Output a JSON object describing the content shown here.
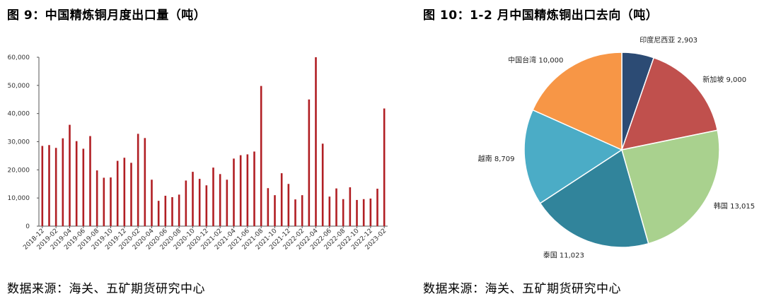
{
  "left": {
    "title": "图 9：中国精炼铜月度出口量（吨）",
    "source": "数据来源：海关、五矿期货研究中心"
  },
  "right": {
    "title": "图 10：1-2 月中国精炼铜出口去向（吨）",
    "source": "数据来源：海关、五矿期货研究中心"
  },
  "chart_data": [
    {
      "type": "bar",
      "title": "图 9：中国精炼铜月度出口量（吨）",
      "color": "#b11f24",
      "ylim": [
        0,
        60000
      ],
      "yticks": [
        0,
        10000,
        20000,
        30000,
        40000,
        50000,
        60000
      ],
      "ytick_labels": [
        "0",
        "10,000",
        "20,000",
        "30,000",
        "40,000",
        "50,000",
        "60,000"
      ],
      "xtick_labels": [
        "2018-12",
        "2019-02",
        "2019-04",
        "2019-06",
        "2019-08",
        "2019-10",
        "2019-12",
        "2020-02",
        "2020-04",
        "2020-06",
        "2020-08",
        "2020-10",
        "2020-12",
        "2021-02",
        "2021-04",
        "2021-06",
        "2021-08",
        "2021-10",
        "2021-12",
        "2022-02",
        "2022-04",
        "2022-06",
        "2022-08",
        "2022-10",
        "2022-12",
        "2023-02"
      ],
      "values": [
        28500,
        28800,
        27800,
        31200,
        36000,
        30200,
        27500,
        32000,
        19800,
        17200,
        17300,
        23200,
        24300,
        22500,
        32800,
        31300,
        16500,
        9000,
        10800,
        10300,
        11200,
        16200,
        19300,
        16800,
        14500,
        20800,
        18500,
        16500,
        24000,
        25200,
        25500,
        26500,
        49800,
        13500,
        11000,
        18800,
        15000,
        9500,
        11000,
        45000,
        60000,
        29300,
        10500,
        13400,
        9600,
        13800,
        9300,
        9600,
        9800,
        13300,
        41800
      ],
      "grid": false,
      "legend": "none"
    },
    {
      "type": "pie",
      "title": "图 10：1-2 月中国精炼铜出口去向（吨）",
      "labels": [
        "印度尼西亚",
        "新加坡",
        "韩国",
        "泰国",
        "越南",
        "中国台湾"
      ],
      "values": [
        2903,
        9000,
        13015,
        11023,
        8709,
        10000
      ],
      "value_labels": [
        "2,903",
        "9,000",
        "13,015",
        "11,023",
        "8,709",
        "10,000"
      ],
      "colors": [
        "#2c4b74",
        "#c0504d",
        "#a9d18e",
        "#31849b",
        "#4bacc6",
        "#f79646"
      ],
      "legend": "none"
    }
  ]
}
